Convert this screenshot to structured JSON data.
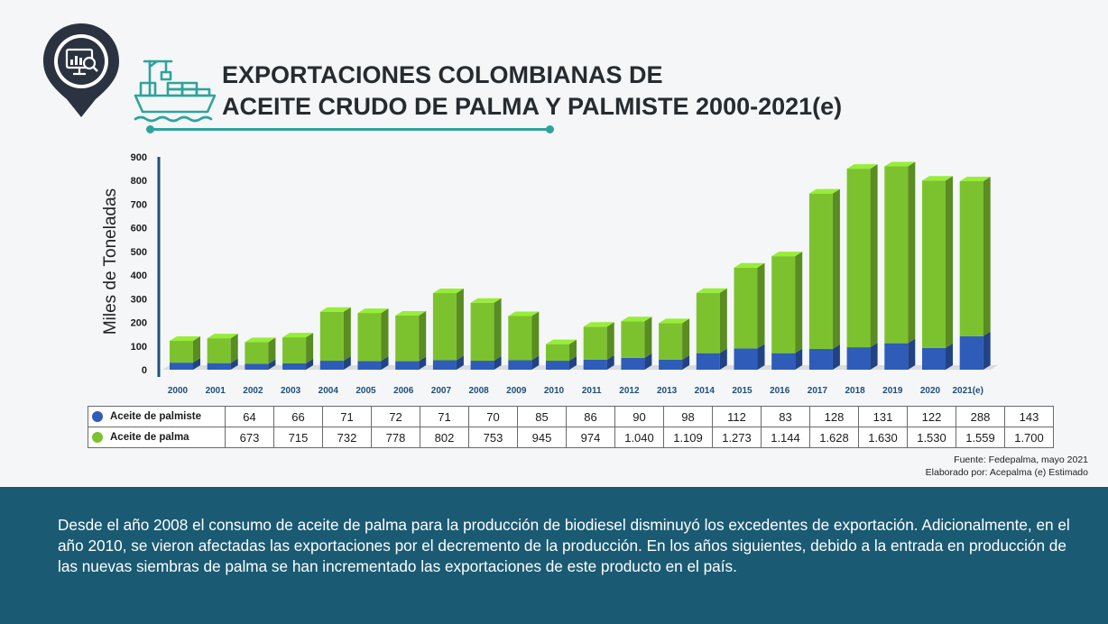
{
  "header": {
    "title_line1": "EXPORTACIONES COLOMBIANAS DE",
    "title_line2": "ACEITE CRUDO DE PALMA Y PALMISTE 2000-2021(e)",
    "icons": [
      "analytics-pin-icon",
      "cargo-ship-icon"
    ]
  },
  "colors": {
    "palmiste": "#2e5cb8",
    "palma": "#7cc22e",
    "footer": "#1a5a73",
    "accent": "#2fa39b"
  },
  "chart_data": {
    "type": "bar",
    "stacked": true,
    "ylabel": "Miles de Toneladas",
    "ylim": [
      0,
      900
    ],
    "yticks": [
      0,
      100,
      200,
      300,
      400,
      500,
      600,
      700,
      800,
      900
    ],
    "categories": [
      "2000",
      "2001",
      "2002",
      "2003",
      "2004",
      "2005",
      "2006",
      "2007",
      "2008",
      "2009",
      "2010",
      "2011",
      "2012",
      "2013",
      "2014",
      "2015",
      "2016",
      "2017",
      "2018",
      "2019",
      "2020",
      "2021(e)"
    ],
    "series": [
      {
        "name": "Aceite de palmiste",
        "values": [
          30,
          28,
          25,
          27,
          38,
          37,
          36,
          40,
          38,
          40,
          38,
          42,
          50,
          42,
          70,
          90,
          70,
          88,
          95,
          112,
          92,
          142
        ]
      },
      {
        "name": "Aceite de palma",
        "values": [
          92,
          105,
          92,
          110,
          207,
          203,
          193,
          284,
          245,
          187,
          70,
          140,
          155,
          155,
          255,
          342,
          410,
          657,
          755,
          748,
          708,
          655
        ]
      }
    ],
    "legend": "table-below",
    "grid": false
  },
  "table": {
    "rows": [
      {
        "label": "Aceite de palmiste",
        "color": "#2e5cb8",
        "values": [
          "64",
          "66",
          "71",
          "72",
          "71",
          "70",
          "85",
          "86",
          "90",
          "98",
          "112",
          "83",
          "128",
          "131",
          "122",
          "288",
          "143"
        ]
      },
      {
        "label": "Aceite de palma",
        "color": "#7cc22e",
        "values": [
          "673",
          "715",
          "732",
          "778",
          "802",
          "753",
          "945",
          "974",
          "1.040",
          "1.109",
          "1.273",
          "1.144",
          "1.628",
          "1.630",
          "1.530",
          "1.559",
          "1.700"
        ]
      }
    ]
  },
  "source": {
    "line1": "Fuente: Fedepalma, mayo 2021",
    "line2": "Elaborado por: Acepalma (e) Estimado"
  },
  "footer": {
    "text": "Desde el año 2008 el consumo  de aceite de palma para la producción de biodiesel disminuyó  los excedentes de exportación. Adicionalmente, en el año 2010, se vieron afectadas las exportaciones por el decremento de la producción. En los años siguientes, debido a la entrada en producción de las nuevas siembras de palma se han incrementado las exportaciones de este producto en el país."
  }
}
